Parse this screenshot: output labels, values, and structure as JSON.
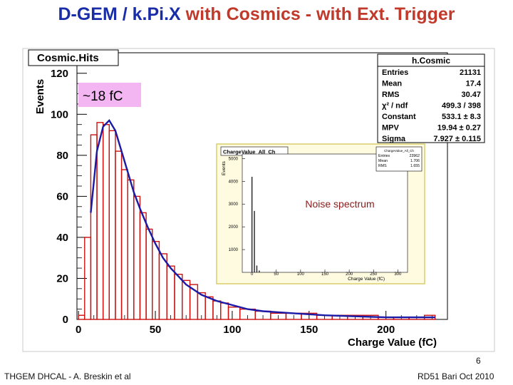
{
  "slide": {
    "title_part1": "D-GEM / k.Pi.X ",
    "title_part2": "with Cosmics - with Ext. Trigger",
    "footer_left": "THGEM DHCAL - A. Breskin et al",
    "footer_right": "RD51 Bari Oct 2010",
    "page_number": "6",
    "colors": {
      "title_blue": "#1a2da8",
      "title_red": "#c0392b",
      "hist_red": "#cc1111",
      "fit_blue": "#1a1aa6",
      "annotation_bg": "#f3b6f3"
    }
  },
  "chart_data": [
    {
      "type": "histogram",
      "title": "Cosmic.Hits",
      "xlabel": "Charge Value (fC)",
      "ylabel": "Events",
      "xlim": [
        -1,
        240
      ],
      "ylim": [
        0,
        130
      ],
      "x_ticks": [
        "0",
        "50",
        "100",
        "150",
        "200"
      ],
      "y_ticks": [
        "0",
        "20",
        "40",
        "60",
        "80",
        "100",
        "120"
      ],
      "annotation": "~18 fC",
      "series": [
        {
          "name": "histogram",
          "bin_centers": [
            2,
            6,
            10,
            14,
            18,
            22,
            26,
            30,
            34,
            38,
            42,
            46,
            50,
            55,
            60,
            65,
            70,
            75,
            80,
            85,
            90,
            95,
            100,
            110,
            120,
            130,
            140,
            150,
            160,
            170,
            180,
            190,
            200,
            210,
            220,
            230
          ],
          "values": [
            2,
            40,
            90,
            96,
            95,
            92,
            82,
            73,
            68,
            60,
            52,
            44,
            38,
            32,
            26,
            22,
            19,
            17,
            13,
            11,
            9,
            8,
            6,
            5,
            4,
            3,
            3,
            3,
            2,
            2,
            2,
            2,
            1,
            1,
            1,
            2
          ]
        },
        {
          "name": "Landau fit",
          "x": [
            8,
            12,
            16,
            20,
            24,
            28,
            32,
            36,
            40,
            45,
            50,
            55,
            60,
            65,
            70,
            80,
            90,
            100,
            110,
            120,
            140,
            160,
            180,
            200,
            220,
            232
          ],
          "values": [
            52,
            82,
            94,
            97,
            92,
            82,
            72,
            62,
            54,
            45,
            37,
            30,
            25,
            21,
            17,
            12,
            9,
            7,
            5,
            4,
            3,
            2,
            1.5,
            1,
            1,
            1
          ]
        }
      ],
      "stats_box": {
        "title": "h.Cosmic",
        "rows": [
          {
            "label": "Entries",
            "value": "21131"
          },
          {
            "label": "Mean",
            "value": "17.4"
          },
          {
            "label": "RMS",
            "value": "30.47"
          },
          {
            "label": "χ² / ndf",
            "value": "499.3 / 398"
          },
          {
            "label": "Constant",
            "value": "533.1 ± 8.3"
          },
          {
            "label": "MPV",
            "value": "19.94 ± 0.27"
          },
          {
            "label": "Sigma",
            "value": "7.927 ± 0.115"
          }
        ]
      }
    },
    {
      "type": "histogram",
      "title": "ChargeValue_All_Ch",
      "xlabel": "Charge Value (fC)",
      "ylabel": "Events",
      "xlim": [
        -20,
        320
      ],
      "ylim": [
        0,
        5200
      ],
      "x_ticks": [
        "0",
        "50",
        "100",
        "150",
        "200",
        "250",
        "300"
      ],
      "y_ticks": [
        "1000",
        "2000",
        "3000",
        "4000",
        "5000"
      ],
      "annotation": "Noise spectrum",
      "series": [
        {
          "name": "noise",
          "bin_centers": [
            0,
            5,
            10,
            15
          ],
          "values": [
            4200,
            2700,
            300,
            80
          ]
        }
      ],
      "stats_box": {
        "title": "ChargeValue_All_Ch",
        "rows": [
          {
            "label": "Entries",
            "value": "23962"
          },
          {
            "label": "Mean",
            "value": "1.706"
          },
          {
            "label": "RMS",
            "value": "1.655"
          }
        ]
      }
    }
  ]
}
